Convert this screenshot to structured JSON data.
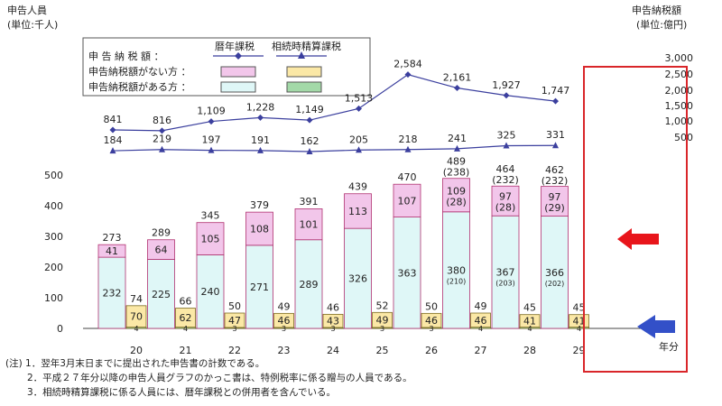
{
  "chart_data": {
    "type": "bar",
    "left_axis_title": "申告人員",
    "left_axis_unit": "(単位:千人)",
    "right_axis_title": "申告納税額",
    "right_axis_unit": "(単位:億円)",
    "x_axis_label": "年分",
    "categories": [
      "20",
      "21",
      "22",
      "23",
      "24",
      "25",
      "26",
      "27",
      "28",
      "29"
    ],
    "left_ticks": [
      "0",
      "100",
      "200",
      "300",
      "400",
      "500"
    ],
    "right_ticks": [
      "500",
      "1,000",
      "1,500",
      "2,000",
      "2,500",
      "3,000"
    ],
    "ylim_left": [
      0,
      500
    ],
    "legend": {
      "header_reki": "暦年課税",
      "header_seisan": "相続時精算課税",
      "row_tax": "申 告 納 税 額 ：",
      "row_without": "申告納税額がない方 ：",
      "row_with": "申告納税額がある方 ：",
      "position": "top-left"
    },
    "reki_with": {
      "values": [
        232,
        225,
        240,
        271,
        289,
        326,
        363,
        380,
        367,
        366
      ],
      "sub_labels": [
        "",
        "",
        "",
        "",
        "",
        "",
        "",
        "(210)",
        "(203)",
        "(202)"
      ],
      "color": "#dff7f7"
    },
    "reki_without": {
      "values": [
        41,
        64,
        105,
        108,
        101,
        113,
        107,
        109,
        97,
        97
      ],
      "sub_labels": [
        "",
        "",
        "",
        "",
        "",
        "",
        "",
        "(28)",
        "(28)",
        "(29)"
      ],
      "color": "#f2c6ea"
    },
    "reki_total": {
      "values": [
        273,
        289,
        345,
        379,
        391,
        439,
        470,
        489,
        464,
        462
      ],
      "sub_labels": [
        "",
        "",
        "",
        "",
        "",
        "",
        "",
        "(238)",
        "(232)",
        "(232)"
      ]
    },
    "seisan_without": {
      "values": [
        70,
        62,
        47,
        46,
        43,
        49,
        46,
        46,
        41,
        41
      ],
      "color": "#fbe8a6"
    },
    "seisan_with": {
      "values": [
        4,
        4,
        3,
        3,
        3,
        3,
        3,
        4,
        4,
        4
      ],
      "color": "#a3d9a8"
    },
    "seisan_total": {
      "values": [
        74,
        66,
        50,
        49,
        46,
        52,
        50,
        49,
        45,
        45
      ]
    },
    "reki_tax": {
      "values": [
        841,
        816,
        1109,
        1228,
        1149,
        1513,
        2584,
        2161,
        1927,
        1747
      ],
      "labels": [
        "841",
        "816",
        "1,109",
        "1,228",
        "1,149",
        "1,513",
        "2,584",
        "2,161",
        "1,927",
        "1,747"
      ]
    },
    "seisan_tax": {
      "values": [
        184,
        219,
        197,
        191,
        162,
        205,
        218,
        241,
        325,
        331
      ],
      "labels": [
        "184",
        "219",
        "197",
        "191",
        "162",
        "205",
        "218",
        "241",
        "325",
        "331"
      ]
    },
    "highlight_category": "29",
    "colors": {
      "line": "#3b3f9e",
      "highlight": "#d9262a",
      "arrow_red": "#e8151b",
      "arrow_blue": "#3350c8"
    }
  },
  "notes": [
    "(注) 1．翌年3月末日までに提出された申告書の計数である。",
    "2．平成２７年分以降の申告人員グラフのかっこ書は、特例税率に係る贈与の人員である。",
    "3．相続時精算課税に係る人員には、暦年課税との併用者を含んでいる。"
  ]
}
